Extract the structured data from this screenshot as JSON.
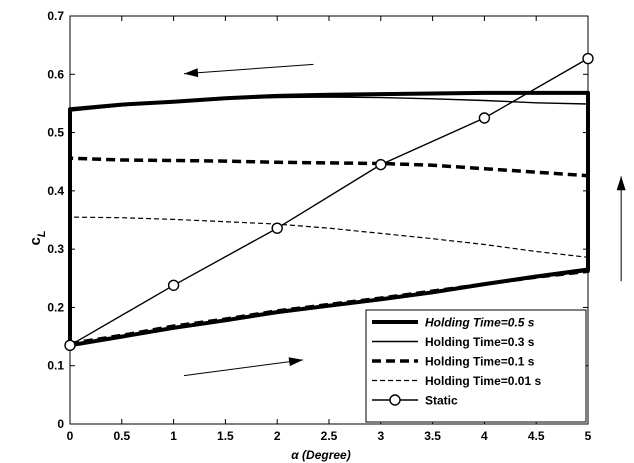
{
  "chart_data": {
    "type": "line",
    "title": "",
    "xlabel": "α (Degree)",
    "ylabel_main": "c",
    "ylabel_sub": "L",
    "xlim": [
      0,
      5
    ],
    "ylim": [
      0,
      0.7
    ],
    "xticks": [
      "0",
      "0.5",
      "1",
      "1.5",
      "2",
      "2.5",
      "3",
      "3.5",
      "4",
      "4.5",
      "5"
    ],
    "yticks": [
      "0",
      "0.1",
      "0.2",
      "0.3",
      "0.4",
      "0.5",
      "0.6",
      "0.7"
    ],
    "grid": false,
    "legend_position": "bottom-right",
    "series": [
      {
        "name_prefix": "Holding Time",
        "name_suffix": "=0.5 s",
        "italic_prefix": true,
        "style": "thick-solid",
        "x": [
          0,
          0.5,
          1,
          1.5,
          2,
          2.5,
          3,
          3.5,
          4,
          4.5,
          5,
          5,
          5,
          4.5,
          4,
          3.5,
          3,
          2.5,
          2,
          1.5,
          1,
          0.5,
          0,
          0,
          0
        ],
        "y": [
          0.135,
          0.15,
          0.165,
          0.178,
          0.192,
          0.203,
          0.214,
          0.226,
          0.24,
          0.253,
          0.265,
          0.4,
          0.568,
          0.568,
          0.568,
          0.567,
          0.566,
          0.565,
          0.563,
          0.559,
          0.553,
          0.548,
          0.54,
          0.3,
          0.135
        ]
      },
      {
        "name_prefix": "Holding Time",
        "name_suffix": "=0.3 s",
        "italic_prefix": false,
        "style": "thin-solid",
        "x": [
          0,
          0.5,
          1,
          1.5,
          2,
          2.5,
          3,
          3.5,
          4,
          4.5,
          5,
          5,
          4.5,
          4,
          3.5,
          3,
          2.5,
          2,
          1.5,
          1,
          0.5,
          0
        ],
        "y": [
          0.135,
          0.149,
          0.163,
          0.176,
          0.19,
          0.201,
          0.212,
          0.224,
          0.238,
          0.251,
          0.262,
          0.549,
          0.551,
          0.555,
          0.558,
          0.56,
          0.561,
          0.56,
          0.558,
          0.553,
          0.546,
          0.537
        ]
      },
      {
        "name_prefix": "Holding Time",
        "name_suffix": "=0.1 s",
        "italic_prefix": false,
        "style": "thick-dashed",
        "x": [
          0,
          0.5,
          1,
          1.5,
          2,
          2.5,
          3,
          3.5,
          4,
          4.5,
          5,
          5,
          4.5,
          4,
          3.5,
          3,
          2.5,
          2,
          1.5,
          1,
          0.5,
          0
        ],
        "y": [
          0.138,
          0.152,
          0.168,
          0.18,
          0.194,
          0.205,
          0.216,
          0.228,
          0.24,
          0.252,
          0.262,
          0.426,
          0.432,
          0.438,
          0.444,
          0.447,
          0.448,
          0.449,
          0.451,
          0.452,
          0.453,
          0.456
        ]
      },
      {
        "name_prefix": "Holding Time",
        "name_suffix": "=0.01 s",
        "italic_prefix": false,
        "style": "thin-dashed",
        "x": [
          0,
          0.5,
          1,
          1.5,
          2,
          2.5,
          3,
          3.5,
          4,
          4.5,
          5,
          5,
          4.5,
          4,
          3.5,
          3,
          2.5,
          2,
          1.5,
          1,
          0.5,
          0
        ],
        "y": [
          0.137,
          0.151,
          0.166,
          0.179,
          0.193,
          0.204,
          0.215,
          0.227,
          0.239,
          0.251,
          0.262,
          0.286,
          0.296,
          0.308,
          0.318,
          0.327,
          0.336,
          0.343,
          0.347,
          0.351,
          0.354,
          0.355
        ]
      },
      {
        "name": "Static",
        "style": "marker-line",
        "x": [
          0,
          1,
          2,
          3,
          4,
          5
        ],
        "y": [
          0.135,
          0.238,
          0.336,
          0.445,
          0.525,
          0.627
        ]
      }
    ],
    "annotations": [
      {
        "kind": "arrow",
        "direction": "left",
        "from": [
          2.35,
          0.617
        ],
        "to": [
          1.1,
          0.601
        ]
      },
      {
        "kind": "arrow",
        "direction": "right",
        "from": [
          1.1,
          0.083
        ],
        "to": [
          2.25,
          0.11
        ]
      },
      {
        "kind": "arrow",
        "direction": "up",
        "from": [
          5.32,
          0.245
        ],
        "to": [
          5.32,
          0.425
        ]
      }
    ]
  }
}
